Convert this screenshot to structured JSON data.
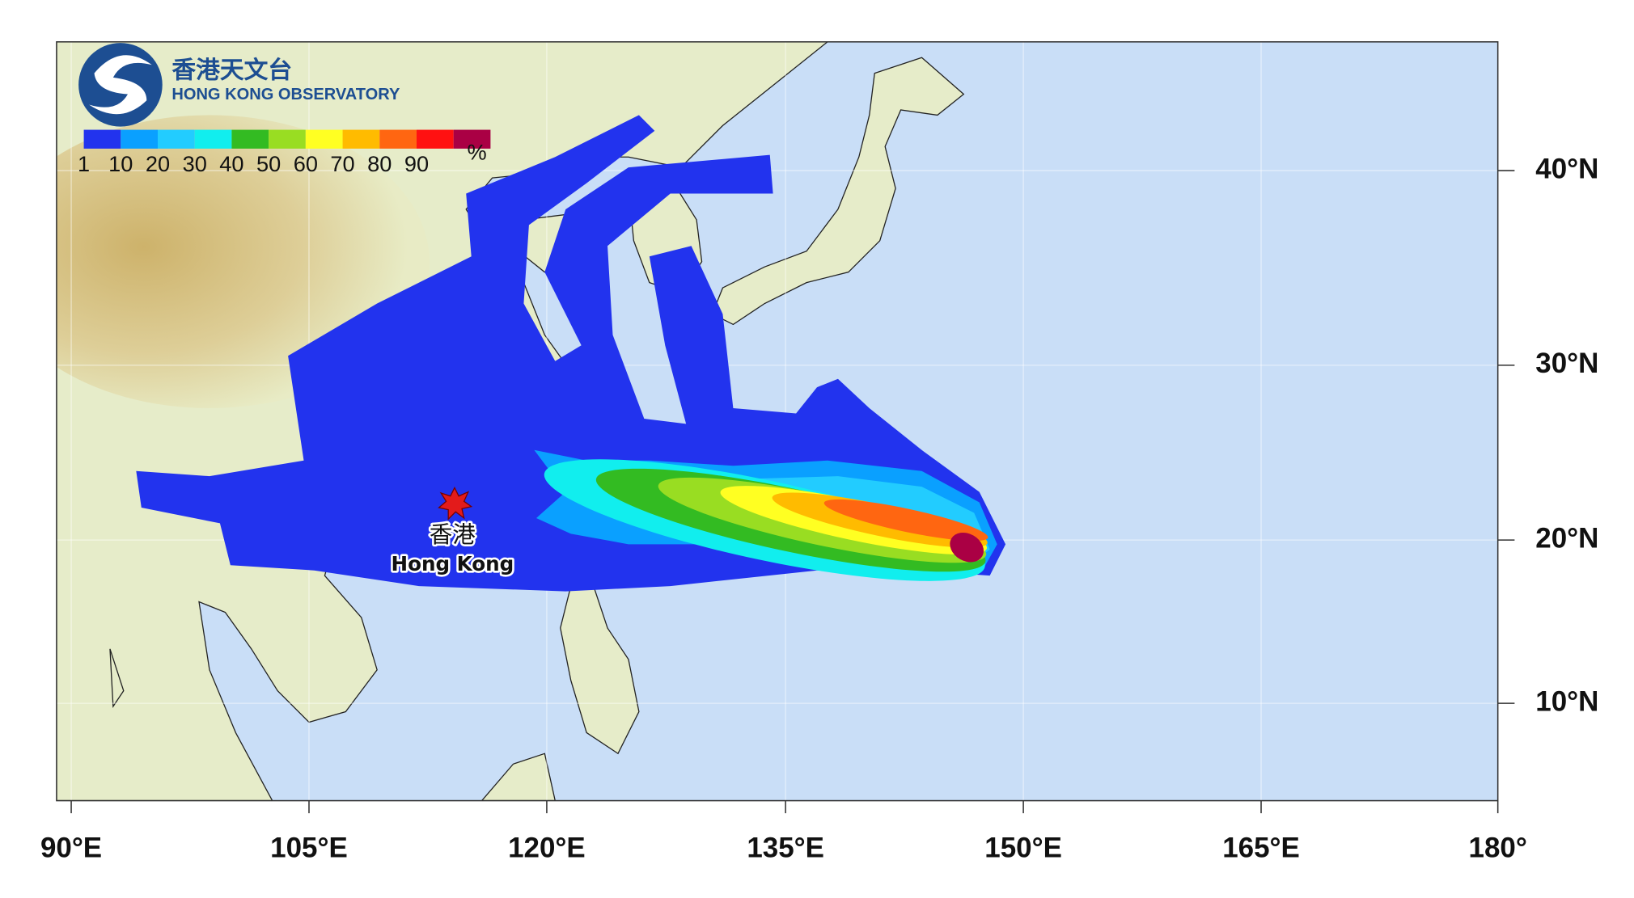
{
  "header": {
    "title_zh": "香港天文台",
    "title_en": "HONG KONG OBSERVATORY"
  },
  "legend": {
    "unit": "%",
    "levels": [
      {
        "label": "1",
        "color": "#2233ee"
      },
      {
        "label": "10",
        "color": "#0aa0ff"
      },
      {
        "label": "20",
        "color": "#22ccff"
      },
      {
        "label": "30",
        "color": "#11eeee"
      },
      {
        "label": "40",
        "color": "#33bb22"
      },
      {
        "label": "50",
        "color": "#99dd22"
      },
      {
        "label": "60",
        "color": "#ffff22"
      },
      {
        "label": "70",
        "color": "#ffbb00"
      },
      {
        "label": "80",
        "color": "#ff6611"
      },
      {
        "label": "90",
        "color": "#ff1111"
      }
    ],
    "top_color": "#aa0044"
  },
  "axes": {
    "lon_labels": [
      "90°E",
      "105°E",
      "120°E",
      "135°E",
      "150°E",
      "165°E",
      "180°"
    ],
    "lat_labels": [
      "40°N",
      "30°N",
      "20°N",
      "10°N"
    ]
  },
  "marker": {
    "label_zh": "香港",
    "label_en": "Hong Kong"
  }
}
